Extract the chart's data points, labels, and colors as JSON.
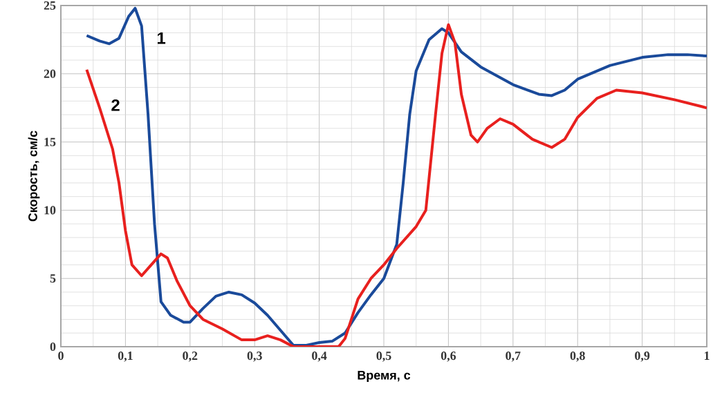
{
  "chart_data": {
    "type": "line",
    "xlabel": "Время, с",
    "ylabel": "Скорость, см/с",
    "xlim": [
      0,
      1
    ],
    "ylim": [
      0,
      25
    ],
    "grid": true,
    "legend": false,
    "marker": "none",
    "line_style": "solid",
    "xticks": [
      0,
      {
        "value": 0.1,
        "label": "0,1"
      },
      {
        "value": 0.2,
        "label": "0,2"
      },
      {
        "value": 0.3,
        "label": "0,3"
      },
      {
        "value": 0.4,
        "label": "0,4"
      },
      {
        "value": 0.5,
        "label": "0,5"
      },
      {
        "value": 0.6,
        "label": "0,6"
      },
      {
        "value": 0.7,
        "label": "0,7"
      },
      {
        "value": 0.8,
        "label": "0,8"
      },
      {
        "value": 0.9,
        "label": "0,9"
      },
      1
    ],
    "yticks": [
      0,
      5,
      10,
      15,
      20,
      25
    ],
    "series": [
      {
        "name": "1",
        "color": "#1a4a9a",
        "x": [
          0.04,
          0.06,
          0.075,
          0.09,
          0.105,
          0.115,
          0.125,
          0.135,
          0.145,
          0.155,
          0.17,
          0.19,
          0.2,
          0.22,
          0.24,
          0.26,
          0.28,
          0.3,
          0.32,
          0.34,
          0.36,
          0.38,
          0.4,
          0.42,
          0.44,
          0.46,
          0.48,
          0.5,
          0.52,
          0.53,
          0.54,
          0.55,
          0.57,
          0.59,
          0.6,
          0.62,
          0.65,
          0.7,
          0.74,
          0.76,
          0.78,
          0.8,
          0.85,
          0.9,
          0.94,
          0.97,
          1.0
        ],
        "values": [
          22.8,
          22.4,
          22.2,
          22.6,
          24.2,
          24.8,
          23.5,
          17,
          9,
          3.3,
          2.3,
          1.8,
          1.8,
          2.8,
          3.7,
          4.0,
          3.8,
          3.2,
          2.3,
          1.2,
          0.1,
          0.1,
          0.3,
          0.4,
          1.0,
          2.5,
          3.8,
          5.0,
          7.5,
          12,
          17,
          20.2,
          22.5,
          23.3,
          23,
          21.6,
          20.5,
          19.2,
          18.5,
          18.4,
          18.8,
          19.6,
          20.6,
          21.2,
          21.4,
          21.4,
          21.3
        ]
      },
      {
        "name": "2",
        "color": "#e8201e",
        "x": [
          0.04,
          0.06,
          0.08,
          0.09,
          0.1,
          0.11,
          0.125,
          0.14,
          0.155,
          0.165,
          0.18,
          0.2,
          0.22,
          0.25,
          0.28,
          0.3,
          0.32,
          0.34,
          0.36,
          0.43,
          0.44,
          0.46,
          0.48,
          0.5,
          0.52,
          0.55,
          0.565,
          0.58,
          0.59,
          0.6,
          0.61,
          0.62,
          0.635,
          0.645,
          0.66,
          0.68,
          0.7,
          0.73,
          0.76,
          0.78,
          0.8,
          0.83,
          0.86,
          0.9,
          0.95,
          1.0
        ],
        "values": [
          20.3,
          17.5,
          14.5,
          12,
          8.5,
          6,
          5.2,
          6,
          6.8,
          6.5,
          4.8,
          3,
          2,
          1.3,
          0.5,
          0.5,
          0.8,
          0.5,
          0,
          0,
          0.6,
          3.5,
          5,
          6,
          7.2,
          8.8,
          10,
          17,
          21.5,
          23.6,
          22.3,
          18.5,
          15.5,
          15,
          16,
          16.7,
          16.3,
          15.2,
          14.6,
          15.2,
          16.8,
          18.2,
          18.8,
          18.6,
          18.1,
          17.5
        ]
      }
    ]
  }
}
